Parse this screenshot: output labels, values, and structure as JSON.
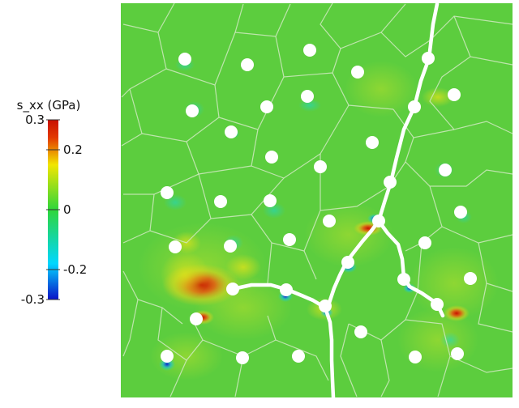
{
  "colorbar": {
    "title": "s_xx (GPa)",
    "ticks": [
      {
        "value": 0.3,
        "label": "0.3"
      },
      {
        "value": 0.2,
        "label": "0.2"
      },
      {
        "value": 0,
        "label": "0"
      },
      {
        "value": -0.2,
        "label": "-0.2"
      },
      {
        "value": -0.3,
        "label": "-0.3"
      }
    ],
    "min": -0.3,
    "max": 0.3,
    "colors": [
      "#0b12c8",
      "#00d7ff",
      "#2fd63a",
      "#f2e600",
      "#e33a00",
      "#c81000"
    ]
  },
  "field": {
    "background_color": "#5ccd3e",
    "grain_boundary_color": "#cfe9c0",
    "hole_color": "#ffffff",
    "crack_color": "#ffffff"
  }
}
